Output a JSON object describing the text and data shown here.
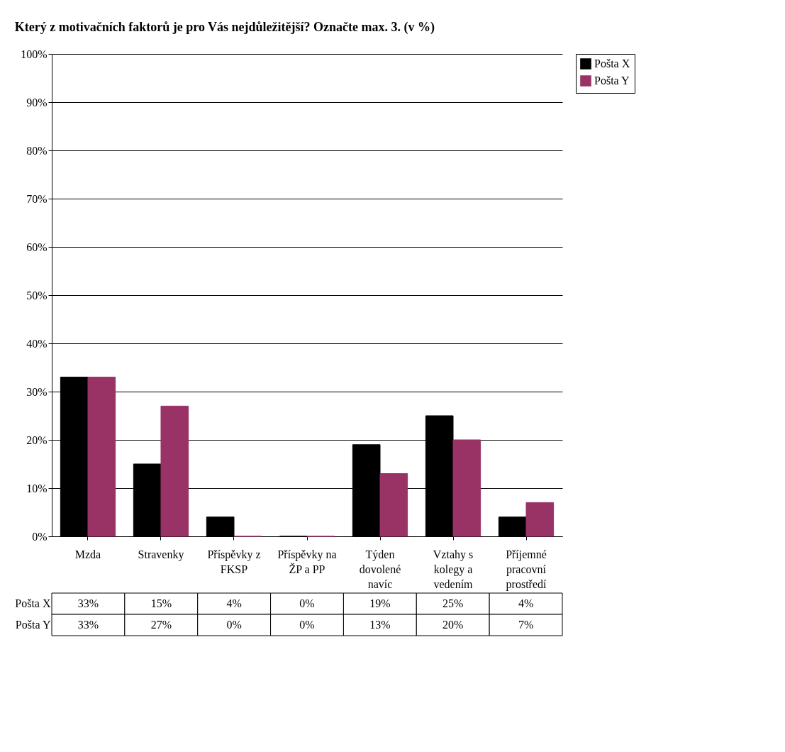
{
  "chart_data": {
    "type": "bar",
    "title": "Který z motivačních faktorů je pro Vás nejdůležitější? Označte max. 3.  (v %)",
    "categories": [
      "Mzda",
      "Stravenky",
      "Příspěvky z FKSP",
      "Příspěvky na ŽP a PP",
      "Týden dovolené navíc",
      "Vztahy s kolegy a vedením",
      "Příjemné pracovní prostředí"
    ],
    "series": [
      {
        "name": "Pošta X",
        "color": "#000000",
        "values": [
          33,
          15,
          4,
          0,
          19,
          25,
          4
        ],
        "value_labels": [
          "33%",
          "15%",
          "4%",
          "0%",
          "19%",
          "25%",
          "4%"
        ]
      },
      {
        "name": "Pošta Y",
        "color": "#993366",
        "values": [
          33,
          27,
          0,
          0,
          13,
          20,
          7
        ],
        "value_labels": [
          "33%",
          "27%",
          "0%",
          "0%",
          "13%",
          "20%",
          "7%"
        ]
      }
    ],
    "ylim": [
      0,
      100
    ],
    "yticks": [
      {
        "value": 0,
        "label": "0%"
      },
      {
        "value": 10,
        "label": "10%"
      },
      {
        "value": 20,
        "label": "20%"
      },
      {
        "value": 30,
        "label": "30%"
      },
      {
        "value": 40,
        "label": "40%"
      },
      {
        "value": 50,
        "label": "50%"
      },
      {
        "value": 60,
        "label": "60%"
      },
      {
        "value": 70,
        "label": "70%"
      },
      {
        "value": 80,
        "label": "80%"
      },
      {
        "value": 90,
        "label": "90%"
      },
      {
        "value": 100,
        "label": "100%"
      }
    ],
    "grid": "y",
    "legend": "right"
  }
}
